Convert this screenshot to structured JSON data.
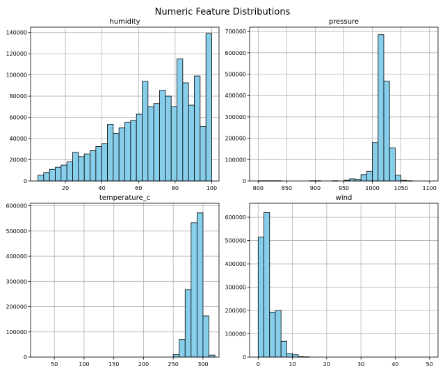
{
  "figure": {
    "title": "Numeric Feature Distributions",
    "bar_color": "#87ceeb",
    "edge_color": "#000000",
    "grid_color": "#b0b0b0"
  },
  "chart_data": [
    {
      "type": "bar",
      "title": "humidity",
      "xlabel": "",
      "ylabel": "",
      "grid": true,
      "bin_start": 5,
      "bin_width": 3.167,
      "values": [
        5500,
        8000,
        11000,
        13000,
        15000,
        18000,
        27000,
        23000,
        25500,
        28500,
        32500,
        35000,
        53500,
        45000,
        50000,
        55500,
        57000,
        63000,
        94000,
        70000,
        73000,
        85500,
        80000,
        70000,
        115000,
        92500,
        71500,
        99000,
        51500,
        139000
      ],
      "xlim": [
        1,
        104
      ],
      "ylim": [
        0,
        145000
      ],
      "xticks": [
        20,
        40,
        60,
        80,
        100
      ],
      "xtick_labels": [
        "20",
        "40",
        "60",
        "80",
        "100"
      ],
      "yticks": [
        0,
        20000,
        40000,
        60000,
        80000,
        100000,
        120000,
        140000
      ],
      "ytick_labels": [
        "0",
        "20000",
        "40000",
        "60000",
        "80000",
        "100000",
        "120000",
        "140000"
      ]
    },
    {
      "type": "bar",
      "title": "pressure",
      "xlabel": "",
      "ylabel": "",
      "grid": true,
      "bin_start": 800,
      "bin_width": 10,
      "values": [
        1000,
        1000,
        1000,
        1000,
        0,
        0,
        0,
        0,
        0,
        1000,
        1000,
        0,
        0,
        1000,
        0,
        3000,
        10000,
        8000,
        30000,
        45000,
        180000,
        685000,
        467000,
        155000,
        27000,
        3000,
        1000,
        0,
        0,
        0
      ],
      "xlim": [
        785,
        1115
      ],
      "ylim": [
        0,
        720000
      ],
      "xticks": [
        800,
        850,
        900,
        950,
        1000,
        1050,
        1100
      ],
      "xtick_labels": [
        "800",
        "850",
        "900",
        "950",
        "1000",
        "1050",
        "1100"
      ],
      "yticks": [
        0,
        100000,
        200000,
        300000,
        400000,
        500000,
        600000,
        700000
      ],
      "ytick_labels": [
        "0",
        "100000",
        "200000",
        "300000",
        "400000",
        "500000",
        "600000",
        "700000"
      ]
    },
    {
      "type": "bar",
      "title": "temperature_c",
      "xlabel": "",
      "ylabel": "",
      "grid": true,
      "bin_start": 250,
      "bin_width": 10,
      "values": [
        10000,
        70000,
        268000,
        533000,
        572000,
        163000,
        8000
      ],
      "xlim": [
        10,
        327
      ],
      "ylim": [
        0,
        610000
      ],
      "xticks": [
        50,
        100,
        150,
        200,
        250,
        300
      ],
      "xtick_labels": [
        "50",
        "100",
        "150",
        "200",
        "250",
        "300"
      ],
      "yticks": [
        0,
        100000,
        200000,
        300000,
        400000,
        500000,
        600000
      ],
      "ytick_labels": [
        "0",
        "100000",
        "200000",
        "300000",
        "400000",
        "500000",
        "600000"
      ]
    },
    {
      "type": "bar",
      "title": "wind",
      "xlabel": "",
      "ylabel": "",
      "grid": true,
      "bin_start": 0,
      "bin_width": 1.667,
      "values": [
        515000,
        620000,
        193000,
        200000,
        68000,
        15000,
        10000,
        2000,
        1000,
        0,
        0,
        0,
        0,
        0,
        0,
        0,
        0,
        0,
        0,
        0,
        0,
        0,
        0,
        0,
        0,
        0,
        0,
        0,
        0,
        0
      ],
      "xlim": [
        -2.5,
        52.5
      ],
      "ylim": [
        0,
        660000
      ],
      "xticks": [
        0,
        10,
        20,
        30,
        40,
        50
      ],
      "xtick_labels": [
        "0",
        "10",
        "20",
        "30",
        "40",
        "50"
      ],
      "yticks": [
        0,
        100000,
        200000,
        300000,
        400000,
        500000,
        600000
      ],
      "ytick_labels": [
        "0",
        "100000",
        "200000",
        "300000",
        "400000",
        "500000",
        "600000"
      ]
    }
  ]
}
